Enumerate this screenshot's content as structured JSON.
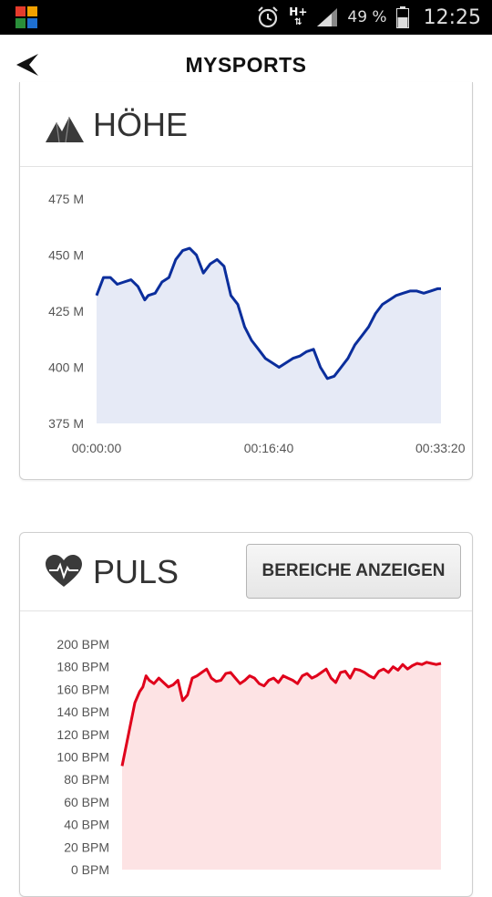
{
  "status_bar": {
    "network": "H+",
    "battery_text": "49 %",
    "time": "12:25"
  },
  "header": {
    "title": "MYSPORTS"
  },
  "altitude_card": {
    "title": "HÖHE",
    "icon": "mountain-icon",
    "chart_data": {
      "type": "area",
      "title": "",
      "xlabel": "",
      "ylabel": "",
      "x_ticks": [
        "00:00:00",
        "00:16:40",
        "00:33:20"
      ],
      "y_ticks": [
        "475 M",
        "450 M",
        "425 M",
        "400 M",
        "375 M"
      ],
      "ylim": [
        375,
        475
      ],
      "xlim_seconds": [
        0,
        2000
      ],
      "line_color": "#0b2e9c",
      "fill_color": "#e6eaf6",
      "series": [
        {
          "x_seconds": [
            0,
            40,
            80,
            120,
            160,
            200,
            240,
            280,
            300,
            340,
            380,
            420,
            460,
            500,
            540,
            580,
            620,
            660,
            700,
            740,
            780,
            820,
            860,
            900,
            940,
            980,
            1020,
            1060,
            1100,
            1140,
            1180,
            1220,
            1260,
            1300,
            1340,
            1380,
            1420,
            1460,
            1500,
            1540,
            1580,
            1620,
            1660,
            1700,
            1740,
            1780,
            1820,
            1860,
            1900,
            1940,
            1980,
            2000
          ],
          "values": [
            432,
            440,
            440,
            437,
            438,
            439,
            436,
            430,
            432,
            433,
            438,
            440,
            448,
            452,
            453,
            450,
            442,
            446,
            448,
            445,
            432,
            428,
            418,
            412,
            408,
            404,
            402,
            400,
            402,
            404,
            405,
            407,
            408,
            400,
            395,
            396,
            400,
            404,
            410,
            414,
            418,
            424,
            428,
            430,
            432,
            433,
            434,
            434,
            433,
            434,
            435,
            435
          ]
        }
      ]
    }
  },
  "pulse_card": {
    "title": "PULS",
    "icon": "heart-pulse-icon",
    "button_label": "BEREICHE ANZEIGEN",
    "chart_data": {
      "type": "area",
      "title": "",
      "xlabel": "",
      "ylabel": "",
      "y_ticks": [
        "200 BPM",
        "180 BPM",
        "160 BPM",
        "140 BPM",
        "120 BPM",
        "100 BPM",
        "80 BPM",
        "60 BPM",
        "40 BPM",
        "20 BPM",
        "0 BPM"
      ],
      "ylim": [
        0,
        200
      ],
      "xlim_seconds": [
        0,
        2000
      ],
      "line_color": "#e0001b",
      "fill_color": "#fde3e4",
      "series": [
        {
          "x_seconds": [
            0,
            40,
            80,
            110,
            130,
            150,
            170,
            200,
            230,
            260,
            290,
            320,
            350,
            380,
            410,
            440,
            470,
            500,
            530,
            560,
            590,
            620,
            650,
            680,
            710,
            740,
            770,
            800,
            830,
            860,
            890,
            920,
            950,
            980,
            1010,
            1040,
            1070,
            1100,
            1130,
            1160,
            1190,
            1220,
            1250,
            1280,
            1310,
            1340,
            1370,
            1400,
            1430,
            1460,
            1490,
            1520,
            1550,
            1580,
            1610,
            1640,
            1670,
            1700,
            1730,
            1760,
            1790,
            1820,
            1850,
            1880,
            1910,
            1940,
            1970,
            2000
          ],
          "values": [
            92,
            120,
            148,
            158,
            162,
            172,
            168,
            165,
            170,
            166,
            162,
            164,
            168,
            150,
            155,
            170,
            172,
            175,
            178,
            170,
            167,
            168,
            174,
            175,
            170,
            165,
            168,
            172,
            170,
            165,
            163,
            168,
            170,
            166,
            172,
            170,
            168,
            165,
            172,
            174,
            170,
            172,
            175,
            178,
            170,
            166,
            175,
            176,
            170,
            178,
            177,
            175,
            172,
            170,
            176,
            178,
            175,
            180,
            177,
            182,
            178,
            181,
            183,
            182,
            184,
            183,
            182,
            183
          ]
        }
      ]
    }
  }
}
